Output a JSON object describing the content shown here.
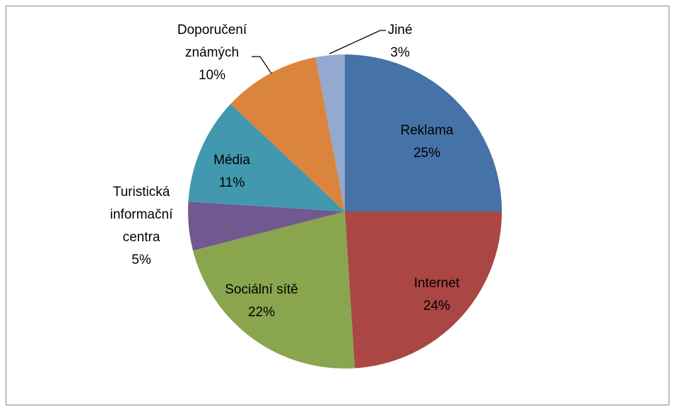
{
  "chart_data": {
    "type": "pie",
    "categories": [
      "Reklama",
      "Internet",
      "Sociální sítě",
      "Turistická informační centra",
      "Média",
      "Doporučení známých",
      "Jiné"
    ],
    "values": [
      25,
      24,
      22,
      5,
      11,
      10,
      3
    ],
    "value_labels": [
      "25%",
      "24%",
      "22%",
      "5%",
      "11%",
      "10%",
      "3%"
    ],
    "colors": [
      "#4572a7",
      "#aa4643",
      "#89a54e",
      "#71588f",
      "#4198af",
      "#db843d",
      "#93a9cf"
    ]
  }
}
